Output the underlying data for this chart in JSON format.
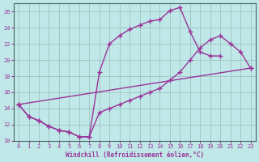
{
  "xlabel": "Windchill (Refroidissement éolien,°C)",
  "bg_color": "#c0e8e8",
  "line_color": "#993399",
  "grid_color": "#99bbbb",
  "xlim": [
    -0.5,
    23.5
  ],
  "ylim": [
    10,
    27
  ],
  "xticks": [
    0,
    1,
    2,
    3,
    4,
    5,
    6,
    7,
    8,
    9,
    10,
    11,
    12,
    13,
    14,
    15,
    16,
    17,
    18,
    19,
    20,
    21,
    22,
    23
  ],
  "yticks": [
    10,
    12,
    14,
    16,
    18,
    20,
    22,
    24,
    26
  ],
  "line1_x": [
    0,
    1,
    2,
    3,
    4,
    5,
    6,
    7,
    8,
    9,
    10,
    11,
    12,
    13,
    14,
    15,
    16,
    17,
    18,
    19,
    20
  ],
  "line1_y": [
    14.5,
    13.0,
    12.5,
    11.8,
    11.3,
    11.1,
    10.5,
    10.5,
    18.5,
    22.0,
    23.0,
    23.8,
    24.3,
    24.8,
    25.0,
    26.1,
    26.5,
    23.5,
    21.0,
    20.5,
    20.5
  ],
  "line2_x": [
    0,
    1,
    2,
    3,
    4,
    5,
    6,
    7,
    8,
    9,
    10,
    11,
    12,
    13,
    14,
    15,
    16,
    17,
    18,
    19,
    20,
    21,
    22,
    23
  ],
  "line2_y": [
    14.5,
    13.0,
    12.5,
    11.8,
    11.3,
    11.1,
    10.5,
    10.5,
    13.5,
    14.0,
    14.5,
    15.0,
    15.5,
    16.0,
    16.5,
    17.5,
    18.5,
    20.0,
    21.5,
    22.5,
    23.0,
    22.0,
    21.0,
    19.0
  ],
  "line3_x": [
    0,
    23
  ],
  "line3_y": [
    14.5,
    19.0
  ]
}
